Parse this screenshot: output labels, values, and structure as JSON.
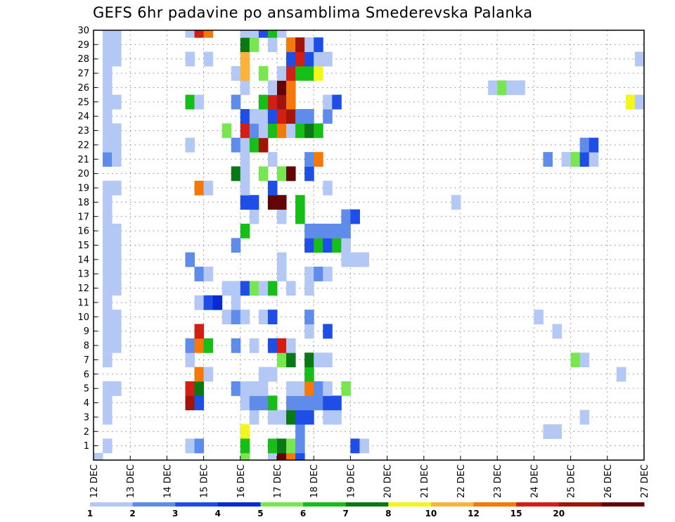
{
  "chart_data": {
    "type": "heatmap",
    "title": "GEFS 6hr padavine po ansamblima Smederevska Palanka",
    "xlabel": "",
    "ylabel": "",
    "x_ticks": [
      "12 DEC",
      "13 DEC",
      "14 DEC",
      "15 DEC",
      "16 DEC",
      "17 DEC",
      "18 DEC",
      "19 DEC",
      "20 DEC",
      "21 DEC",
      "22 DEC",
      "23 DEC",
      "24 DEC",
      "25 DEC",
      "26 DEC",
      "27 DEC"
    ],
    "y_ticks": [
      "1",
      "2",
      "3",
      "4",
      "5",
      "6",
      "7",
      "8",
      "9",
      "10",
      "11",
      "12",
      "13",
      "14",
      "15",
      "16",
      "17",
      "18",
      "19",
      "20",
      "21",
      "22",
      "23",
      "24",
      "25",
      "26",
      "27",
      "28",
      "29",
      "30"
    ],
    "x_range_days": [
      12,
      27
    ],
    "y_range": [
      0,
      30
    ],
    "time_step_hours": 6,
    "grid": true,
    "legend_position": "bottom",
    "legend_labels": [
      "1",
      "2",
      "3",
      "4",
      "5",
      "6",
      "7",
      "8",
      "10",
      "12",
      "15",
      "20"
    ],
    "legend_colors": [
      "#b4c8f5",
      "#5f8ceb",
      "#1e4ee6",
      "#0a2ad2",
      "#78e650",
      "#18be18",
      "#0a7814",
      "#f5f51e",
      "#fab43c",
      "#f5780a",
      "#d21e14",
      "#a0140a",
      "#640505"
    ],
    "cell_time_unit": "day",
    "cells": [
      [
        12.0,
        0,
        0
      ],
      [
        12.25,
        1,
        0
      ],
      [
        12.25,
        3,
        0
      ],
      [
        12.25,
        4,
        0
      ],
      [
        12.25,
        5,
        0
      ],
      [
        12.25,
        7,
        0
      ],
      [
        12.25,
        8,
        0
      ],
      [
        12.25,
        9,
        0
      ],
      [
        12.25,
        10,
        0
      ],
      [
        12.25,
        11,
        0
      ],
      [
        12.25,
        12,
        0
      ],
      [
        12.25,
        13,
        0
      ],
      [
        12.25,
        14,
        0
      ],
      [
        12.25,
        15,
        0
      ],
      [
        12.25,
        16,
        0
      ],
      [
        12.25,
        17,
        0
      ],
      [
        12.25,
        18,
        0
      ],
      [
        12.25,
        19,
        0
      ],
      [
        12.25,
        21,
        1
      ],
      [
        12.25,
        22,
        0
      ],
      [
        12.25,
        23,
        0
      ],
      [
        12.25,
        24,
        0
      ],
      [
        12.25,
        25,
        0
      ],
      [
        12.25,
        26,
        0
      ],
      [
        12.25,
        27,
        0
      ],
      [
        12.25,
        28,
        0
      ],
      [
        12.25,
        29,
        0
      ],
      [
        12.25,
        30,
        0
      ],
      [
        12.5,
        5,
        0
      ],
      [
        12.5,
        8,
        0
      ],
      [
        12.5,
        9,
        0
      ],
      [
        12.5,
        10,
        0
      ],
      [
        12.5,
        12,
        0
      ],
      [
        12.5,
        13,
        0
      ],
      [
        12.5,
        14,
        0
      ],
      [
        12.5,
        15,
        0
      ],
      [
        12.5,
        16,
        0
      ],
      [
        12.5,
        19,
        0
      ],
      [
        12.5,
        21,
        0
      ],
      [
        12.5,
        22,
        0
      ],
      [
        12.5,
        23,
        0
      ],
      [
        12.5,
        25,
        0
      ],
      [
        12.5,
        28,
        0
      ],
      [
        12.5,
        29,
        0
      ],
      [
        12.5,
        30,
        0
      ],
      [
        14.5,
        1,
        0
      ],
      [
        14.5,
        4,
        11
      ],
      [
        14.5,
        5,
        10
      ],
      [
        14.5,
        7,
        0
      ],
      [
        14.5,
        8,
        1
      ],
      [
        14.5,
        14,
        1
      ],
      [
        14.5,
        22,
        0
      ],
      [
        14.5,
        25,
        5
      ],
      [
        14.5,
        28,
        0
      ],
      [
        14.5,
        30,
        0
      ],
      [
        14.75,
        1,
        1
      ],
      [
        14.75,
        4,
        2
      ],
      [
        14.75,
        5,
        6
      ],
      [
        14.75,
        6,
        9
      ],
      [
        14.75,
        8,
        9
      ],
      [
        14.75,
        9,
        10
      ],
      [
        14.75,
        11,
        0
      ],
      [
        14.75,
        13,
        1
      ],
      [
        14.75,
        19,
        9
      ],
      [
        14.75,
        25,
        0
      ],
      [
        14.75,
        30,
        10
      ],
      [
        15.0,
        6,
        0
      ],
      [
        15.0,
        8,
        5
      ],
      [
        15.0,
        11,
        2
      ],
      [
        15.0,
        13,
        0
      ],
      [
        15.0,
        19,
        0
      ],
      [
        15.0,
        28,
        0
      ],
      [
        15.0,
        30,
        9
      ],
      [
        15.25,
        11,
        3
      ],
      [
        15.5,
        10,
        0
      ],
      [
        15.5,
        12,
        0
      ],
      [
        15.75,
        5,
        1
      ],
      [
        15.75,
        8,
        1
      ],
      [
        15.75,
        10,
        1
      ],
      [
        15.75,
        11,
        0
      ],
      [
        15.75,
        12,
        0
      ],
      [
        15.75,
        15,
        1
      ],
      [
        15.75,
        20,
        6
      ],
      [
        15.75,
        22,
        1
      ],
      [
        15.75,
        25,
        1
      ],
      [
        15.75,
        27,
        0
      ],
      [
        16.0,
        0,
        4
      ],
      [
        16.0,
        2,
        7
      ],
      [
        16.0,
        1,
        5
      ],
      [
        16.0,
        4,
        0
      ],
      [
        16.0,
        5,
        0
      ],
      [
        16.0,
        10,
        0
      ],
      [
        16.0,
        12,
        2
      ],
      [
        16.0,
        16,
        5
      ],
      [
        16.0,
        18,
        2
      ],
      [
        16.0,
        19,
        0
      ],
      [
        16.0,
        20,
        0
      ],
      [
        16.0,
        21,
        0
      ],
      [
        16.0,
        22,
        0
      ],
      [
        16.0,
        23,
        10
      ],
      [
        16.0,
        24,
        2
      ],
      [
        16.0,
        26,
        0
      ],
      [
        16.0,
        27,
        8
      ],
      [
        16.0,
        28,
        8
      ],
      [
        16.0,
        29,
        6
      ],
      [
        16.0,
        30,
        0
      ],
      [
        15.5,
        23,
        4
      ],
      [
        16.25,
        3,
        0
      ],
      [
        16.25,
        4,
        1
      ],
      [
        16.25,
        5,
        0
      ],
      [
        16.25,
        8,
        0
      ],
      [
        16.25,
        12,
        4
      ],
      [
        16.25,
        17,
        0
      ],
      [
        16.25,
        18,
        2
      ],
      [
        16.25,
        22,
        5
      ],
      [
        16.25,
        23,
        1
      ],
      [
        16.25,
        24,
        0
      ],
      [
        16.25,
        29,
        4
      ],
      [
        16.25,
        30,
        0
      ],
      [
        16.5,
        4,
        1
      ],
      [
        16.5,
        5,
        0
      ],
      [
        16.5,
        6,
        0
      ],
      [
        16.5,
        10,
        0
      ],
      [
        16.5,
        12,
        0
      ],
      [
        16.5,
        20,
        4
      ],
      [
        16.5,
        22,
        11
      ],
      [
        16.5,
        23,
        0
      ],
      [
        16.5,
        24,
        0
      ],
      [
        16.5,
        25,
        5
      ],
      [
        16.5,
        27,
        4
      ],
      [
        16.5,
        30,
        2
      ],
      [
        16.75,
        0,
        0
      ],
      [
        16.75,
        1,
        5
      ],
      [
        16.75,
        3,
        0
      ],
      [
        16.75,
        4,
        5
      ],
      [
        16.75,
        6,
        0
      ],
      [
        16.75,
        8,
        2
      ],
      [
        16.75,
        10,
        2
      ],
      [
        16.75,
        12,
        5
      ],
      [
        16.75,
        18,
        12
      ],
      [
        16.75,
        19,
        2
      ],
      [
        16.75,
        21,
        0
      ],
      [
        16.75,
        23,
        5
      ],
      [
        16.75,
        24,
        2
      ],
      [
        16.75,
        25,
        10
      ],
      [
        16.75,
        26,
        0
      ],
      [
        16.75,
        29,
        0
      ],
      [
        16.75,
        30,
        5
      ],
      [
        17.0,
        0,
        12
      ],
      [
        17.0,
        1,
        6
      ],
      [
        17.0,
        3,
        0
      ],
      [
        17.0,
        7,
        4
      ],
      [
        17.0,
        8,
        10
      ],
      [
        17.0,
        13,
        0
      ],
      [
        17.0,
        14,
        0
      ],
      [
        17.0,
        17,
        0
      ],
      [
        17.0,
        18,
        12
      ],
      [
        17.0,
        20,
        4
      ],
      [
        17.0,
        23,
        9
      ],
      [
        17.0,
        24,
        10
      ],
      [
        17.0,
        25,
        11
      ],
      [
        17.0,
        26,
        12
      ],
      [
        17.0,
        27,
        0
      ],
      [
        17.0,
        30,
        0
      ],
      [
        17.25,
        0,
        9
      ],
      [
        17.25,
        1,
        4
      ],
      [
        17.25,
        3,
        6
      ],
      [
        17.25,
        4,
        1
      ],
      [
        17.25,
        5,
        0
      ],
      [
        17.25,
        7,
        6
      ],
      [
        17.25,
        8,
        0
      ],
      [
        17.25,
        12,
        0
      ],
      [
        17.25,
        20,
        12
      ],
      [
        17.25,
        23,
        0
      ],
      [
        17.25,
        24,
        11
      ],
      [
        17.25,
        25,
        9
      ],
      [
        17.25,
        26,
        9
      ],
      [
        17.25,
        27,
        10
      ],
      [
        17.25,
        28,
        2
      ],
      [
        17.25,
        29,
        9
      ],
      [
        17.5,
        0,
        2
      ],
      [
        17.5,
        1,
        1
      ],
      [
        17.5,
        2,
        1
      ],
      [
        17.5,
        3,
        2
      ],
      [
        17.5,
        4,
        1
      ],
      [
        17.5,
        5,
        0
      ],
      [
        17.5,
        17,
        5
      ],
      [
        17.5,
        18,
        5
      ],
      [
        17.5,
        23,
        5
      ],
      [
        17.5,
        24,
        1
      ],
      [
        17.5,
        27,
        5
      ],
      [
        17.5,
        28,
        10
      ],
      [
        17.5,
        29,
        11
      ],
      [
        17.75,
        3,
        2
      ],
      [
        17.75,
        4,
        1
      ],
      [
        17.75,
        5,
        9
      ],
      [
        17.75,
        6,
        5
      ],
      [
        17.75,
        7,
        6
      ],
      [
        17.75,
        9,
        0
      ],
      [
        17.75,
        10,
        1
      ],
      [
        17.75,
        12,
        0
      ],
      [
        17.75,
        13,
        0
      ],
      [
        17.75,
        15,
        2
      ],
      [
        17.75,
        16,
        1
      ],
      [
        17.75,
        20,
        2
      ],
      [
        17.75,
        21,
        1
      ],
      [
        17.75,
        23,
        6
      ],
      [
        17.75,
        24,
        1
      ],
      [
        17.75,
        27,
        5
      ],
      [
        17.75,
        28,
        2
      ],
      [
        17.75,
        29,
        0
      ],
      [
        18.0,
        4,
        1
      ],
      [
        18.0,
        5,
        1
      ],
      [
        18.0,
        7,
        0
      ],
      [
        18.0,
        13,
        1
      ],
      [
        18.0,
        15,
        5
      ],
      [
        18.0,
        16,
        1
      ],
      [
        18.0,
        21,
        9
      ],
      [
        18.0,
        23,
        5
      ],
      [
        18.0,
        27,
        7
      ],
      [
        18.0,
        28,
        0
      ],
      [
        18.0,
        29,
        2
      ],
      [
        18.25,
        3,
        0
      ],
      [
        18.25,
        4,
        2
      ],
      [
        18.25,
        5,
        0
      ],
      [
        18.25,
        7,
        0
      ],
      [
        18.25,
        9,
        2
      ],
      [
        18.25,
        13,
        0
      ],
      [
        18.25,
        15,
        2
      ],
      [
        18.25,
        16,
        1
      ],
      [
        18.25,
        19,
        0
      ],
      [
        18.25,
        24,
        1
      ],
      [
        18.25,
        25,
        0
      ],
      [
        18.25,
        28,
        0
      ],
      [
        18.5,
        3,
        0
      ],
      [
        18.5,
        4,
        2
      ],
      [
        18.5,
        15,
        5
      ],
      [
        18.5,
        16,
        1
      ],
      [
        18.5,
        25,
        2
      ],
      [
        18.75,
        5,
        4
      ],
      [
        18.75,
        14,
        0
      ],
      [
        18.75,
        15,
        0
      ],
      [
        18.75,
        16,
        1
      ],
      [
        18.75,
        17,
        1
      ],
      [
        19.0,
        1,
        2
      ],
      [
        19.0,
        14,
        0
      ],
      [
        19.0,
        17,
        2
      ],
      [
        19.25,
        1,
        0
      ],
      [
        19.25,
        14,
        0
      ],
      [
        21.75,
        18,
        0
      ],
      [
        22.75,
        26,
        0
      ],
      [
        23.0,
        26,
        4
      ],
      [
        23.25,
        26,
        0
      ],
      [
        23.5,
        26,
        0
      ],
      [
        24.0,
        10,
        0
      ],
      [
        24.25,
        2,
        0
      ],
      [
        24.25,
        21,
        1
      ],
      [
        24.5,
        2,
        0
      ],
      [
        24.5,
        9,
        0
      ],
      [
        24.75,
        21,
        0
      ],
      [
        25.0,
        7,
        4
      ],
      [
        25.0,
        21,
        4
      ],
      [
        25.25,
        3,
        0
      ],
      [
        25.25,
        7,
        0
      ],
      [
        25.25,
        21,
        2
      ],
      [
        25.25,
        22,
        1
      ],
      [
        25.5,
        21,
        0
      ],
      [
        25.5,
        22,
        2
      ],
      [
        26.25,
        6,
        0
      ],
      [
        26.5,
        25,
        7
      ],
      [
        26.75,
        25,
        0
      ],
      [
        26.75,
        28,
        0
      ]
    ]
  }
}
